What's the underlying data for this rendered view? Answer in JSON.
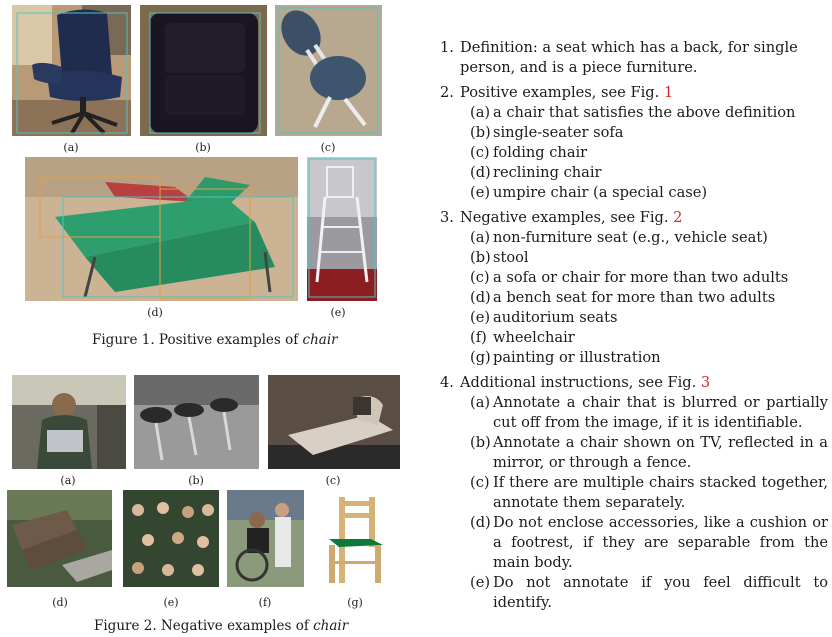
{
  "figure1": {
    "caption_prefix": "Figure 1. Positive examples of ",
    "caption_emph": "chair",
    "labels": [
      "(a)",
      "(b)",
      "(c)",
      "(d)",
      "(e)"
    ]
  },
  "figure2": {
    "caption_prefix": "Figure 2. Negative examples of ",
    "caption_emph": "chair",
    "labels": [
      "(a)",
      "(b)",
      "(c)",
      "(d)",
      "(e)",
      "(f)",
      "(g)"
    ]
  },
  "rules": {
    "definition": {
      "num": "1.",
      "text": "Definition: a seat which has a back, for single person, and is a piece furniture."
    },
    "positive": {
      "num": "2.",
      "text": "Positive examples, see Fig. ",
      "ref": "1",
      "items": [
        {
          "label": "(a)",
          "text": "a chair that satisfies the above definition"
        },
        {
          "label": "(b)",
          "text": "single-seater sofa"
        },
        {
          "label": "(c)",
          "text": "folding chair"
        },
        {
          "label": "(d)",
          "text": "reclining chair"
        },
        {
          "label": "(e)",
          "text": "umpire chair (a special case)"
        }
      ]
    },
    "negative": {
      "num": "3.",
      "text": "Negative examples, see Fig. ",
      "ref": "2",
      "items": [
        {
          "label": "(a)",
          "text": "non-furniture seat (e.g., vehicle seat)"
        },
        {
          "label": "(b)",
          "text": "stool"
        },
        {
          "label": "(c)",
          "text": "a sofa or chair for more than two adults"
        },
        {
          "label": "(d)",
          "text": "a bench seat for more than two adults"
        },
        {
          "label": "(e)",
          "text": "auditorium seats"
        },
        {
          "label": "(f)",
          "text": "wheelchair"
        },
        {
          "label": "(g)",
          "text": "painting or illustration"
        }
      ]
    },
    "additional": {
      "num": "4.",
      "text": "Additional instructions, see Fig. ",
      "ref": "3",
      "items": [
        {
          "label": "(a)",
          "text": "Annotate a chair that is blurred or partially cut off from the image, if it is identifiable."
        },
        {
          "label": "(b)",
          "text": "Annotate a chair shown on TV, reflected in a mirror, or through a fence."
        },
        {
          "label": "(c)",
          "text": "If there are multiple chairs stacked together, annotate them separately."
        },
        {
          "label": "(d)",
          "text": "Do not enclose accessories, like a cushion or a footrest, if they are separable from the main body."
        },
        {
          "label": "(e)",
          "text": "Do not annotate if you feel difficult to identify."
        }
      ]
    }
  }
}
